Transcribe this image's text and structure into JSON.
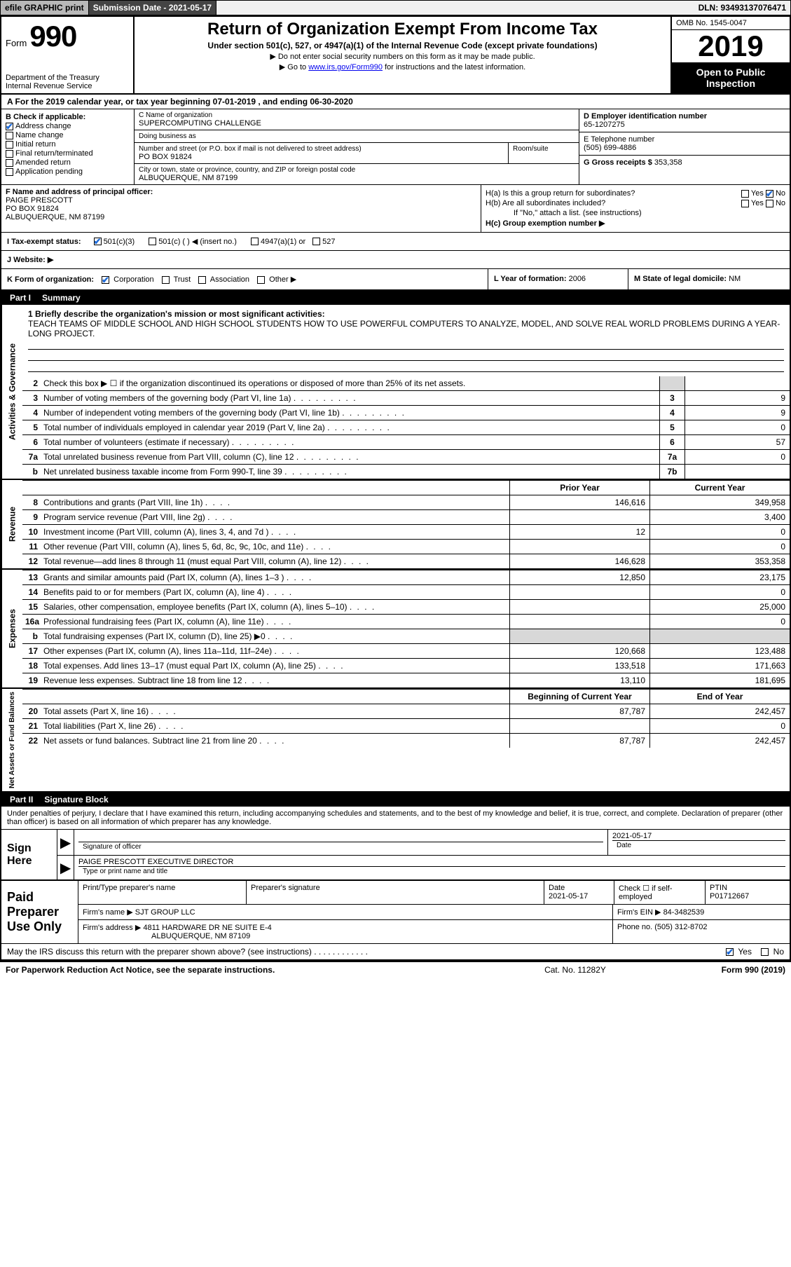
{
  "topbar": {
    "efile": "efile GRAPHIC print",
    "submission_label": "Submission Date - 2021-05-17",
    "dln": "DLN: 93493137076471"
  },
  "header": {
    "form_word": "Form",
    "form_num": "990",
    "dept1": "Department of the Treasury",
    "dept2": "Internal Revenue Service",
    "title": "Return of Organization Exempt From Income Tax",
    "subtitle": "Under section 501(c), 527, or 4947(a)(1) of the Internal Revenue Code (except private foundations)",
    "no_ssn": "▶ Do not enter social security numbers on this form as it may be made public.",
    "goto_pre": "▶ Go to ",
    "goto_link": "www.irs.gov/Form990",
    "goto_post": " for instructions and the latest information.",
    "omb": "OMB No. 1545-0047",
    "year": "2019",
    "open": "Open to Public Inspection"
  },
  "row_a": "A For the 2019 calendar year, or tax year beginning 07-01-2019   , and ending 06-30-2020",
  "col_b": {
    "label": "B Check if applicable:",
    "addr_change": "Address change",
    "name_change": "Name change",
    "initial": "Initial return",
    "final": "Final return/terminated",
    "amended": "Amended return",
    "app_pending": "Application pending"
  },
  "col_c": {
    "name_lbl": "C Name of organization",
    "name": "SUPERCOMPUTING CHALLENGE",
    "dba_lbl": "Doing business as",
    "dba": "",
    "addr_lbl": "Number and street (or P.O. box if mail is not delivered to street address)",
    "room_lbl": "Room/suite",
    "addr": "PO BOX 91824",
    "city_lbl": "City or town, state or province, country, and ZIP or foreign postal code",
    "city": "ALBUQUERQUE, NM  87199"
  },
  "col_d": {
    "ein_lbl": "D Employer identification number",
    "ein": "65-1207275",
    "tel_lbl": "E Telephone number",
    "tel": "(505) 699-4886",
    "gross_lbl": "G Gross receipts $",
    "gross": "353,358"
  },
  "col_f": {
    "lbl": "F  Name and address of principal officer:",
    "name": "PAIGE PRESCOTT",
    "addr1": "PO BOX 91824",
    "addr2": "ALBUQUERQUE, NM  87199"
  },
  "col_h": {
    "ha_lbl": "H(a)  Is this a group return for subordinates?",
    "ha_yes": "Yes",
    "ha_no": "No",
    "hb_lbl": "H(b)  Are all subordinates included?",
    "hb_yes": "Yes",
    "hb_no": "No",
    "hb_note": "If \"No,\" attach a list. (see instructions)",
    "hc_lbl": "H(c)  Group exemption number ▶"
  },
  "row_i": {
    "lbl": "I  Tax-exempt status:",
    "c3": "501(c)(3)",
    "c": "501(c) (  ) ◀ (insert no.)",
    "a1": "4947(a)(1) or",
    "s527": "527"
  },
  "row_j": {
    "lbl": "J  Website: ▶"
  },
  "row_k": {
    "lbl": "K Form of organization:",
    "corp": "Corporation",
    "trust": "Trust",
    "assoc": "Association",
    "other": "Other ▶",
    "l_lbl": "L Year of formation:",
    "l_val": "2006",
    "m_lbl": "M State of legal domicile:",
    "m_val": "NM"
  },
  "part1": {
    "num": "Part I",
    "title": "Summary"
  },
  "vlabels": {
    "ag": "Activities & Governance",
    "rev": "Revenue",
    "exp": "Expenses",
    "na": "Net Assets or Fund Balances"
  },
  "mission": {
    "lbl": "1   Briefly describe the organization's mission or most significant activities:",
    "text": "TEACH TEAMS OF MIDDLE SCHOOL AND HIGH SCHOOL STUDENTS HOW TO USE POWERFUL COMPUTERS TO ANALYZE, MODEL, AND SOLVE REAL WORLD PROBLEMS DURING A YEAR- LONG PROJECT."
  },
  "lines_ag": [
    {
      "n": "2",
      "d": "Check this box ▶ ☐  if the organization discontinued its operations or disposed of more than 25% of its net assets.",
      "box": "",
      "v": ""
    },
    {
      "n": "3",
      "d": "Number of voting members of the governing body (Part VI, line 1a)",
      "box": "3",
      "v": "9"
    },
    {
      "n": "4",
      "d": "Number of independent voting members of the governing body (Part VI, line 1b)",
      "box": "4",
      "v": "9"
    },
    {
      "n": "5",
      "d": "Total number of individuals employed in calendar year 2019 (Part V, line 2a)",
      "box": "5",
      "v": "0"
    },
    {
      "n": "6",
      "d": "Total number of volunteers (estimate if necessary)",
      "box": "6",
      "v": "57"
    },
    {
      "n": "7a",
      "d": "Total unrelated business revenue from Part VIII, column (C), line 12",
      "box": "7a",
      "v": "0"
    },
    {
      "n": "b",
      "d": "Net unrelated business taxable income from Form 990-T, line 39",
      "box": "7b",
      "v": ""
    }
  ],
  "rev_hdr": {
    "prior": "Prior Year",
    "curr": "Current Year"
  },
  "lines_rev": [
    {
      "n": "8",
      "d": "Contributions and grants (Part VIII, line 1h)",
      "p": "146,616",
      "c": "349,958"
    },
    {
      "n": "9",
      "d": "Program service revenue (Part VIII, line 2g)",
      "p": "",
      "c": "3,400"
    },
    {
      "n": "10",
      "d": "Investment income (Part VIII, column (A), lines 3, 4, and 7d )",
      "p": "12",
      "c": "0"
    },
    {
      "n": "11",
      "d": "Other revenue (Part VIII, column (A), lines 5, 6d, 8c, 9c, 10c, and 11e)",
      "p": "",
      "c": "0"
    },
    {
      "n": "12",
      "d": "Total revenue—add lines 8 through 11 (must equal Part VIII, column (A), line 12)",
      "p": "146,628",
      "c": "353,358"
    }
  ],
  "lines_exp": [
    {
      "n": "13",
      "d": "Grants and similar amounts paid (Part IX, column (A), lines 1–3 )",
      "p": "12,850",
      "c": "23,175"
    },
    {
      "n": "14",
      "d": "Benefits paid to or for members (Part IX, column (A), line 4)",
      "p": "",
      "c": "0"
    },
    {
      "n": "15",
      "d": "Salaries, other compensation, employee benefits (Part IX, column (A), lines 5–10)",
      "p": "",
      "c": "25,000"
    },
    {
      "n": "16a",
      "d": "Professional fundraising fees (Part IX, column (A), line 11e)",
      "p": "",
      "c": "0"
    },
    {
      "n": "b",
      "d": "Total fundraising expenses (Part IX, column (D), line 25) ▶0",
      "p": "SHADE",
      "c": "SHADE"
    },
    {
      "n": "17",
      "d": "Other expenses (Part IX, column (A), lines 11a–11d, 11f–24e)",
      "p": "120,668",
      "c": "123,488"
    },
    {
      "n": "18",
      "d": "Total expenses. Add lines 13–17 (must equal Part IX, column (A), line 25)",
      "p": "133,518",
      "c": "171,663"
    },
    {
      "n": "19",
      "d": "Revenue less expenses. Subtract line 18 from line 12",
      "p": "13,110",
      "c": "181,695"
    }
  ],
  "na_hdr": {
    "beg": "Beginning of Current Year",
    "end": "End of Year"
  },
  "lines_na": [
    {
      "n": "20",
      "d": "Total assets (Part X, line 16)",
      "p": "87,787",
      "c": "242,457"
    },
    {
      "n": "21",
      "d": "Total liabilities (Part X, line 26)",
      "p": "",
      "c": "0"
    },
    {
      "n": "22",
      "d": "Net assets or fund balances. Subtract line 21 from line 20",
      "p": "87,787",
      "c": "242,457"
    }
  ],
  "part2": {
    "num": "Part II",
    "title": "Signature Block"
  },
  "sig": {
    "intro": "Under penalties of perjury, I declare that I have examined this return, including accompanying schedules and statements, and to the best of my knowledge and belief, it is true, correct, and complete. Declaration of preparer (other than officer) is based on all information of which preparer has any knowledge.",
    "sign_here": "Sign Here",
    "sig_of_officer": "Signature of officer",
    "date_lbl": "Date",
    "date": "2021-05-17",
    "printed": "PAIGE PRESCOTT  EXECUTIVE DIRECTOR",
    "printed_lbl": "Type or print name and title"
  },
  "prep": {
    "label": "Paid Preparer Use Only",
    "h_print": "Print/Type preparer's name",
    "h_sig": "Preparer's signature",
    "h_date": "Date",
    "date": "2021-05-17",
    "h_check": "Check ☐ if self-employed",
    "h_ptin": "PTIN",
    "ptin": "P01712667",
    "firm_name_lbl": "Firm's name    ▶",
    "firm_name": "SJT GROUP LLC",
    "firm_ein_lbl": "Firm's EIN ▶",
    "firm_ein": "84-3482539",
    "firm_addr_lbl": "Firm's address ▶",
    "firm_addr1": "4811 HARDWARE DR NE SUITE E-4",
    "firm_addr2": "ALBUQUERQUE, NM  87109",
    "phone_lbl": "Phone no.",
    "phone": "(505) 312-8702"
  },
  "may_irs": {
    "q": "May the IRS discuss this return with the preparer shown above? (see instructions)",
    "yes": "Yes",
    "no": "No"
  },
  "footer": {
    "left": "For Paperwork Reduction Act Notice, see the separate instructions.",
    "mid": "Cat. No. 11282Y",
    "right": "Form 990 (2019)"
  },
  "colors": {
    "link": "#0000ee",
    "check": "#1d6ad8",
    "shade": "#d8d8d8"
  }
}
